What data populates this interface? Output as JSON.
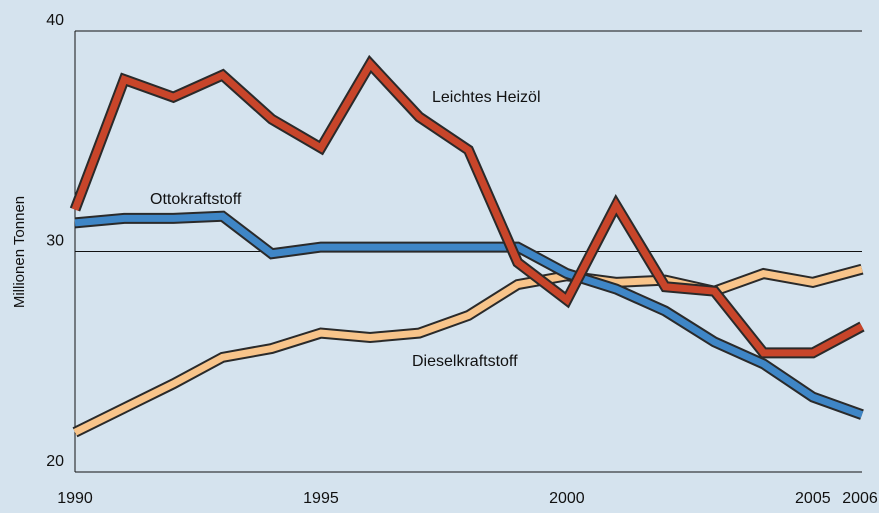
{
  "chart_data": {
    "type": "line",
    "y_label": "Millionen Tonnen",
    "x": [
      1990,
      1991,
      1992,
      1993,
      1994,
      1995,
      1996,
      1997,
      1998,
      1999,
      2000,
      2001,
      2002,
      2003,
      2004,
      2005,
      2006
    ],
    "series": [
      {
        "name": "Leichtes Heizöl",
        "color": "#c8452a",
        "values": [
          31.9,
          37.8,
          37.0,
          38.0,
          36.0,
          34.7,
          38.5,
          36.1,
          34.6,
          29.5,
          27.8,
          32.1,
          28.4,
          28.2,
          25.4,
          25.4,
          26.6
        ]
      },
      {
        "name": "Ottokraftstoff",
        "color": "#3f86c6",
        "values": [
          31.3,
          31.5,
          31.5,
          31.6,
          29.9,
          30.2,
          30.2,
          30.2,
          30.2,
          30.2,
          29.0,
          28.3,
          27.3,
          25.9,
          24.9,
          23.4,
          22.6
        ]
      },
      {
        "name": "Dieselkraftstoff",
        "color": "#f8c48a",
        "values": [
          21.8,
          22.9,
          24.0,
          25.2,
          25.6,
          26.3,
          26.1,
          26.3,
          27.1,
          28.5,
          28.9,
          28.6,
          28.7,
          28.2,
          29.0,
          28.6,
          29.2
        ]
      }
    ],
    "xlim": [
      1990,
      2006
    ],
    "xticks": [
      1990,
      1995,
      2000,
      2005,
      2006
    ],
    "ylim": [
      20,
      40
    ],
    "yticks": [
      20,
      30,
      40
    ],
    "grid": true
  }
}
